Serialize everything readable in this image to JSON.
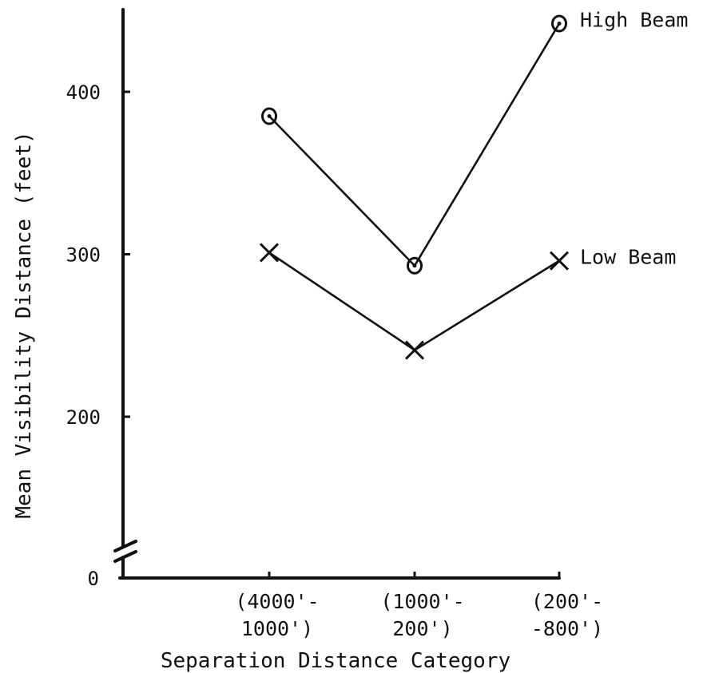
{
  "chart_data": {
    "type": "line",
    "xlabel": "Separation Distance Category",
    "ylabel": "Mean Visibility Distance (feet)",
    "categories": [
      [
        "(4000'-",
        "1000')"
      ],
      [
        "(1000'-",
        "200')"
      ],
      [
        "(200'-",
        "-800')"
      ]
    ],
    "y_ticks": [
      0,
      200,
      300,
      400
    ],
    "y_axis_break": true,
    "ylim": [
      0,
      450
    ],
    "grid": false,
    "series": [
      {
        "name": "High Beam",
        "marker": "circle",
        "values": [
          385,
          293,
          442
        ]
      },
      {
        "name": "Low Beam",
        "marker": "x",
        "values": [
          301,
          241,
          296
        ]
      }
    ]
  }
}
